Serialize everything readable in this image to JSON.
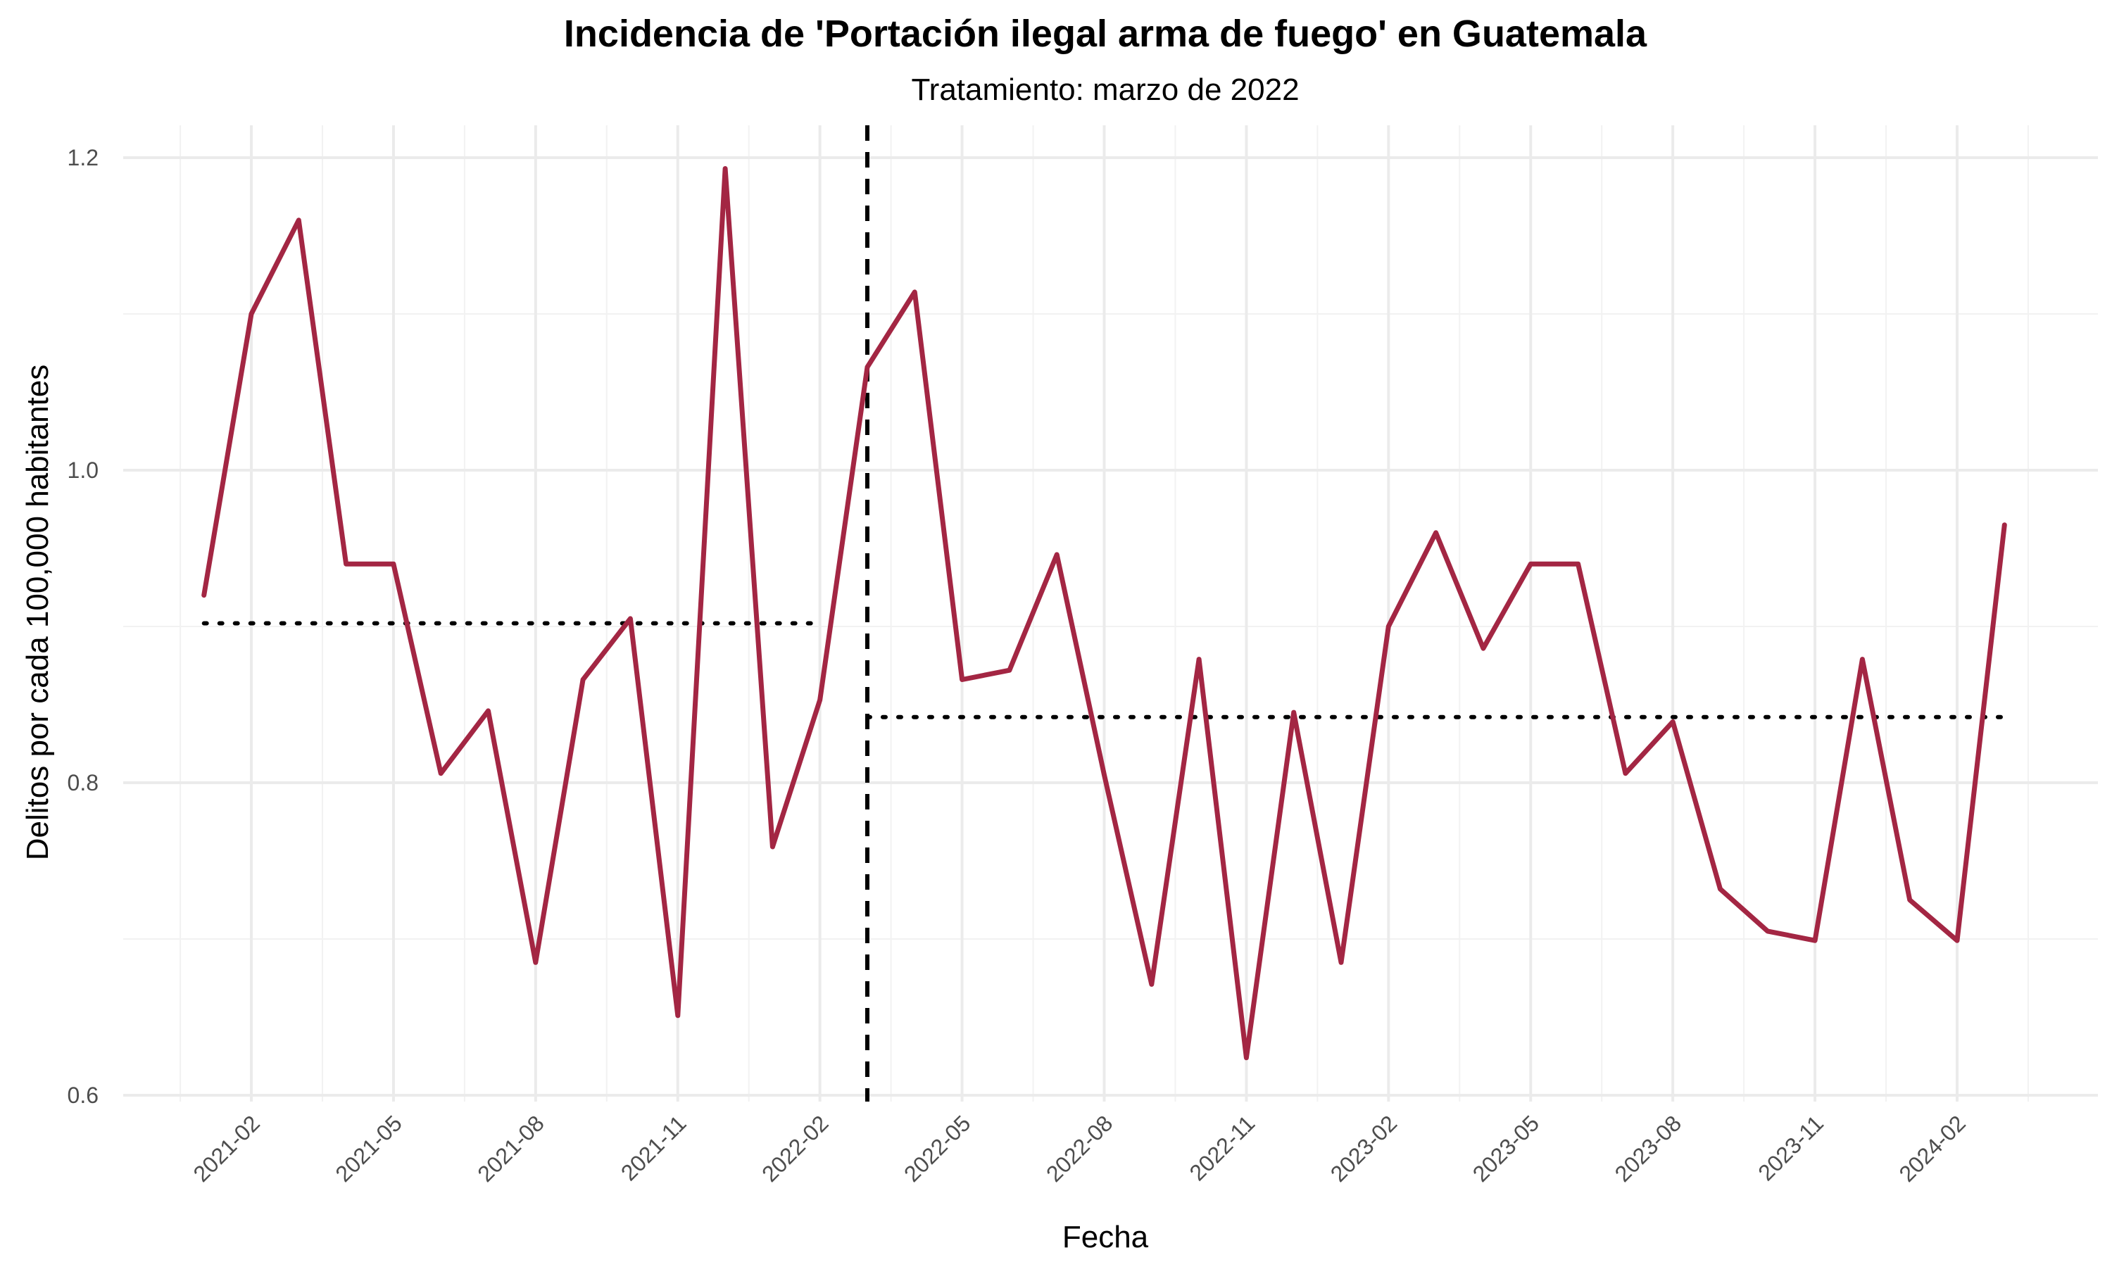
{
  "chart_data": {
    "type": "line",
    "title": "Incidencia de 'Portación ilegal arma de fuego' en Guatemala",
    "subtitle": "Tratamiento: marzo de 2022",
    "xlabel": "Fecha",
    "ylabel": "Delitos por cada 100,000 habitantes",
    "x_ticks": [
      "2021-02",
      "2021-05",
      "2021-08",
      "2021-11",
      "2022-02",
      "2022-05",
      "2022-08",
      "2022-11",
      "2023-02",
      "2023-05",
      "2023-08",
      "2023-11",
      "2024-02"
    ],
    "y_ticks": [
      "0.6",
      "0.8",
      "1.0",
      "1.2"
    ],
    "ylim": [
      0.6,
      1.2
    ],
    "grid": true,
    "series": [
      {
        "color": "#A32643",
        "x": [
          "2021-01",
          "2021-02",
          "2021-03",
          "2021-04",
          "2021-05",
          "2021-06",
          "2021-07",
          "2021-08",
          "2021-09",
          "2021-10",
          "2021-11",
          "2021-12",
          "2022-01",
          "2022-02",
          "2022-03",
          "2022-04",
          "2022-05",
          "2022-06",
          "2022-07",
          "2022-08",
          "2022-09",
          "2022-10",
          "2022-11",
          "2022-12",
          "2023-01",
          "2023-02",
          "2023-03",
          "2023-04",
          "2023-05",
          "2023-06",
          "2023-07",
          "2023-08",
          "2023-09",
          "2023-10",
          "2023-11",
          "2023-12",
          "2024-01",
          "2024-02",
          "2024-03"
        ],
        "values": [
          0.92,
          1.1,
          1.16,
          0.94,
          0.94,
          0.806,
          0.846,
          0.685,
          0.866,
          0.905,
          0.651,
          1.193,
          0.759,
          0.853,
          1.066,
          1.114,
          0.866,
          0.872,
          0.946,
          0.805,
          0.671,
          0.879,
          0.624,
          0.845,
          0.685,
          0.9,
          0.96,
          0.886,
          0.94,
          0.94,
          0.806,
          0.839,
          0.732,
          0.705,
          0.699,
          0.879,
          0.725,
          0.699,
          0.965
        ]
      }
    ],
    "treatment": {
      "date": "2022-03",
      "style": "dashed",
      "color": "#000000"
    },
    "means": [
      {
        "from": "2021-01",
        "to": "2022-02",
        "value": 0.902,
        "style": "dotted"
      },
      {
        "from": "2022-03",
        "to": "2024-03",
        "value": 0.842,
        "style": "dotted"
      }
    ]
  }
}
